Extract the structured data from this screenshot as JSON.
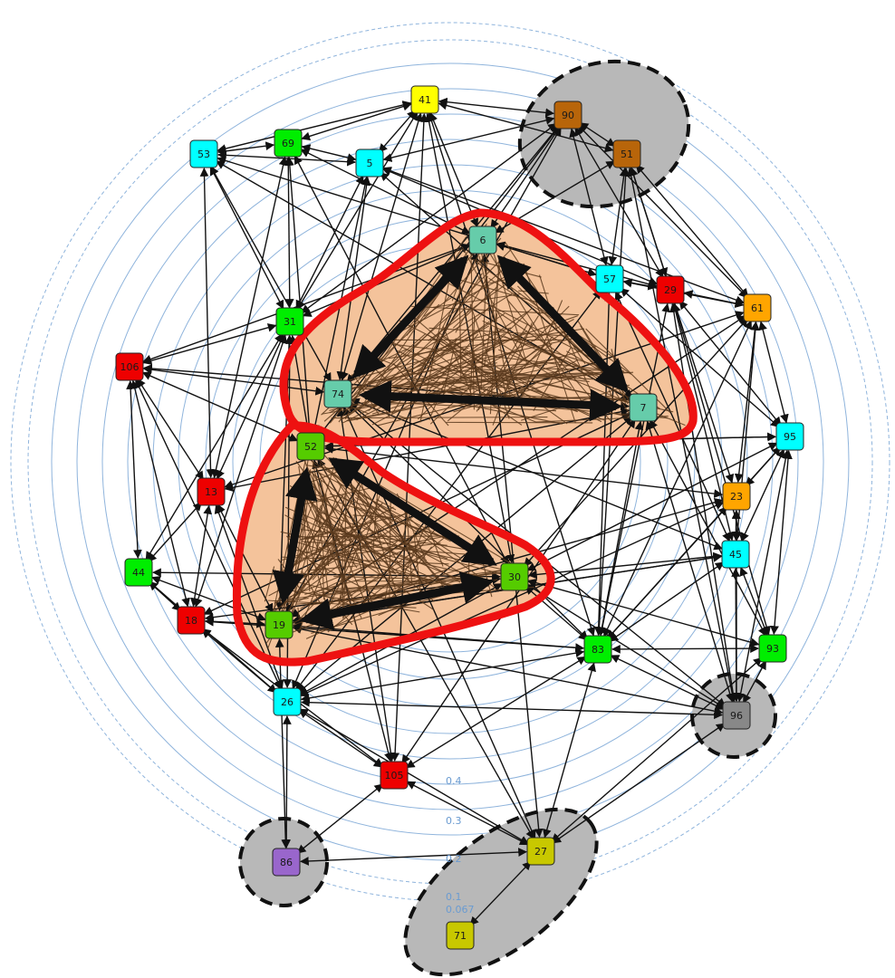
{
  "diagram": {
    "type": "network-graph",
    "colors": {
      "ring": "#8fb4dc",
      "edge": "#111111",
      "cluster_edge": "#5a3a1e",
      "cluster_fill": "#f4c39b",
      "cluster_border": "#ee1111",
      "group_fill": "#b8b8b8",
      "group_border": "#111111"
    },
    "ring_labels": [
      "0.4",
      "0.3",
      "0.2",
      "0.1",
      "0.067"
    ],
    "nodes": [
      {
        "id": "41",
        "color": "#ffff00"
      },
      {
        "id": "90",
        "color": "#b8650a"
      },
      {
        "id": "51",
        "color": "#b8650a"
      },
      {
        "id": "53",
        "color": "#00ffff"
      },
      {
        "id": "69",
        "color": "#00ee00"
      },
      {
        "id": "5",
        "color": "#00ffff"
      },
      {
        "id": "6",
        "color": "#66ccaa"
      },
      {
        "id": "57",
        "color": "#00ffff"
      },
      {
        "id": "29",
        "color": "#ee0000"
      },
      {
        "id": "61",
        "color": "#ffa500"
      },
      {
        "id": "31",
        "color": "#00ee00"
      },
      {
        "id": "106",
        "color": "#ee0000"
      },
      {
        "id": "74",
        "color": "#66ccaa"
      },
      {
        "id": "7",
        "color": "#66ccaa"
      },
      {
        "id": "95",
        "color": "#00ffff"
      },
      {
        "id": "52",
        "color": "#55cc00"
      },
      {
        "id": "13",
        "color": "#ee0000"
      },
      {
        "id": "23",
        "color": "#ffa500"
      },
      {
        "id": "45",
        "color": "#00ffff"
      },
      {
        "id": "44",
        "color": "#00ee00"
      },
      {
        "id": "30",
        "color": "#55cc00"
      },
      {
        "id": "18",
        "color": "#ee0000"
      },
      {
        "id": "19",
        "color": "#55cc00"
      },
      {
        "id": "83",
        "color": "#00ee00"
      },
      {
        "id": "93",
        "color": "#00ee00"
      },
      {
        "id": "26",
        "color": "#00ffff"
      },
      {
        "id": "96",
        "color": "#888888"
      },
      {
        "id": "105",
        "color": "#ee0000"
      },
      {
        "id": "27",
        "color": "#c8c800"
      },
      {
        "id": "86",
        "color": "#9966cc"
      },
      {
        "id": "71",
        "color": "#c8c800"
      }
    ]
  }
}
